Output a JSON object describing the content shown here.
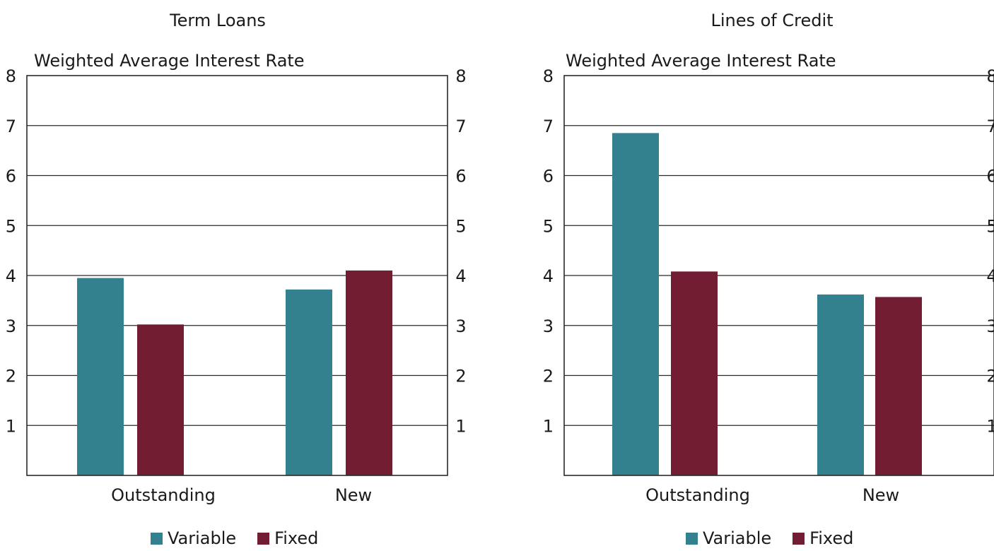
{
  "colors": {
    "variable": "#33808f",
    "fixed": "#721d31"
  },
  "chart_data": [
    {
      "type": "bar",
      "title": "Term Loans",
      "ylabel": "Weighted Average Interest Rate",
      "xlabel": "",
      "ylim": [
        0,
        8
      ],
      "yticks": [
        "1",
        "2",
        "3",
        "4",
        "5",
        "6",
        "7",
        "8"
      ],
      "categories": [
        "Outstanding",
        "New"
      ],
      "series": [
        {
          "name": "Variable",
          "values": [
            3.95,
            3.72
          ]
        },
        {
          "name": "Fixed",
          "values": [
            3.02,
            4.1
          ]
        }
      ],
      "grid": true,
      "legend": "bottom"
    },
    {
      "type": "bar",
      "title": "Lines of Credit",
      "ylabel": "Weighted Average Interest Rate",
      "xlabel": "",
      "ylim": [
        0,
        8
      ],
      "yticks": [
        "1",
        "2",
        "3",
        "4",
        "5",
        "6",
        "7",
        "8"
      ],
      "categories": [
        "Outstanding",
        "New"
      ],
      "series": [
        {
          "name": "Variable",
          "values": [
            6.85,
            3.62
          ]
        },
        {
          "name": "Fixed",
          "values": [
            4.08,
            3.57
          ]
        }
      ],
      "grid": true,
      "legend": "bottom"
    }
  ]
}
